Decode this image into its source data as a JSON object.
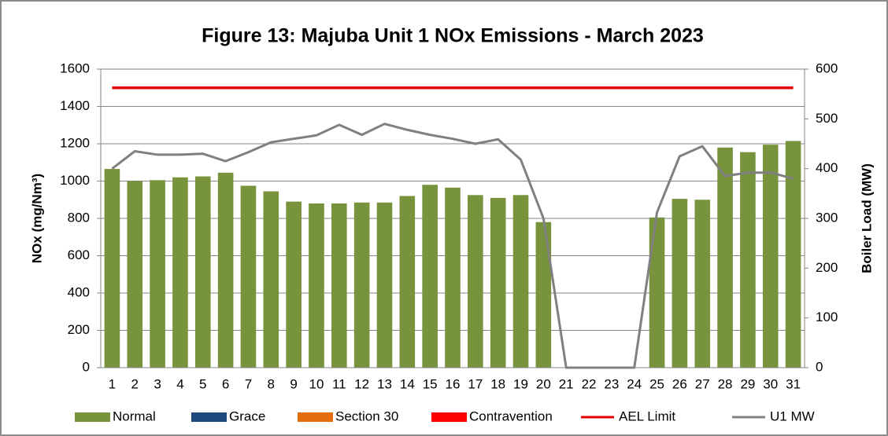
{
  "chart_data": {
    "type": "bar",
    "title": "Figure 13: Majuba Unit 1 NOx Emissions -  March 2023",
    "ylabel": "NOx (mg/Nm³)",
    "y2label": "Boiler Load (MW)",
    "categories": [
      "1",
      "2",
      "3",
      "4",
      "5",
      "6",
      "7",
      "8",
      "9",
      "10",
      "11",
      "12",
      "13",
      "14",
      "15",
      "16",
      "17",
      "18",
      "19",
      "20",
      "21",
      "22",
      "23",
      "24",
      "25",
      "26",
      "27",
      "28",
      "29",
      "30",
      "31"
    ],
    "series": [
      {
        "name": "Normal",
        "kind": "bar",
        "color": "#77933c",
        "values": [
          1065,
          1000,
          1005,
          1020,
          1025,
          1045,
          975,
          945,
          890,
          880,
          880,
          885,
          885,
          920,
          980,
          965,
          925,
          910,
          925,
          780,
          null,
          null,
          null,
          null,
          805,
          905,
          900,
          1180,
          1155,
          1195,
          1215
        ]
      },
      {
        "name": "Grace",
        "kind": "bar",
        "color": "#1f497d"
      },
      {
        "name": "Section 30",
        "kind": "bar",
        "color": "#e46c0a"
      },
      {
        "name": "Contravention",
        "kind": "bar",
        "color": "#ff0000"
      },
      {
        "name": "AEL Limit",
        "kind": "line",
        "color": "#e00000",
        "values": [
          1500,
          1500,
          1500,
          1500,
          1500,
          1500,
          1500,
          1500,
          1500,
          1500,
          1500,
          1500,
          1500,
          1500,
          1500,
          1500,
          1500,
          1500,
          1500,
          1500,
          1500,
          1500,
          1500,
          1500,
          1500,
          1500,
          1500,
          1500,
          1500,
          1500,
          1500
        ]
      },
      {
        "name": "U1 MW",
        "kind": "line",
        "axis": "y2",
        "color": "#808080",
        "values": [
          400,
          435,
          428,
          428,
          430,
          415,
          433,
          453,
          460,
          467,
          488,
          468,
          490,
          478,
          468,
          460,
          450,
          459,
          418,
          300,
          0,
          0,
          0,
          0,
          312,
          425,
          445,
          385,
          392,
          392,
          380
        ]
      }
    ],
    "ylim": [
      0,
      1600
    ],
    "yticks": [
      0,
      200,
      400,
      600,
      800,
      1000,
      1200,
      1400,
      1600
    ],
    "y2lim": [
      0,
      600
    ],
    "y2ticks": [
      0,
      100,
      200,
      300,
      400,
      500,
      600
    ],
    "grid": true,
    "legend": "bottom"
  }
}
